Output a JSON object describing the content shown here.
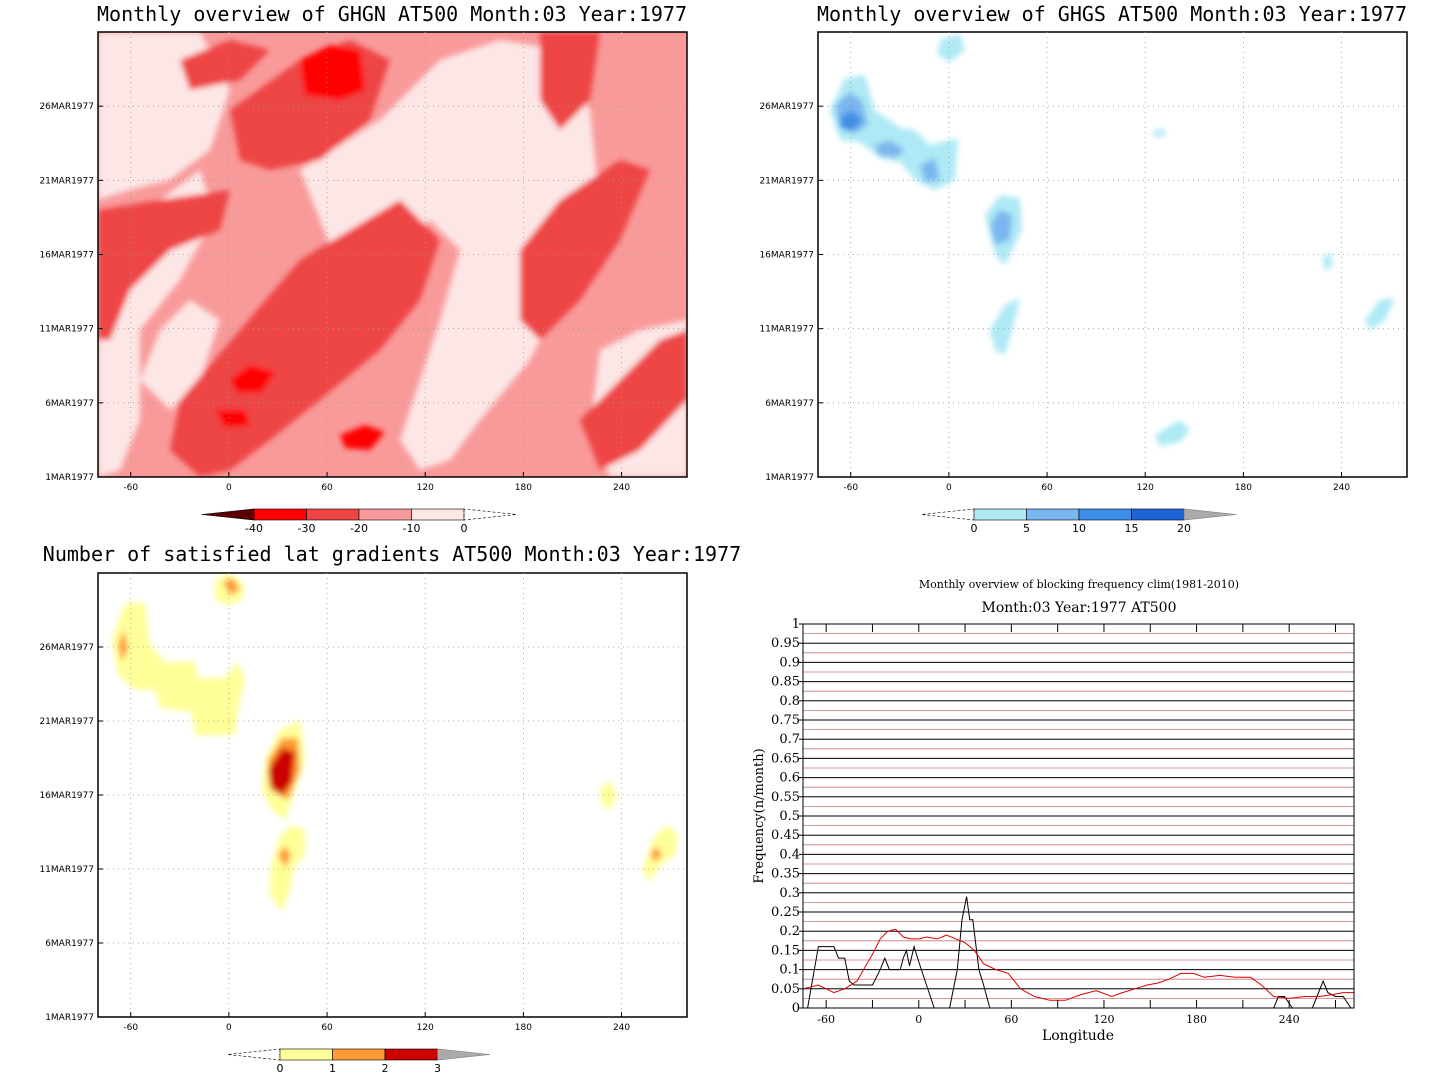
{
  "panels": {
    "ghgn": {
      "title": "Monthly overview of GHGN AT500 Month:03 Year:1977",
      "colorbar": {
        "labels": [
          "-40",
          "-30",
          "-20",
          "-10",
          "0"
        ],
        "colors": [
          "#5a0000",
          "#ff0000",
          "#ee4444",
          "#f99a9a",
          "#fde6e6"
        ]
      }
    },
    "ghgs": {
      "title": "Monthly overview of GHGS AT500 Month:03 Year:1977",
      "colorbar": {
        "labels": [
          "0",
          "5",
          "10",
          "15",
          "20"
        ],
        "colors": [
          "#aee9f5",
          "#7ab6ef",
          "#3d8fe8",
          "#1f64d4"
        ]
      }
    },
    "lat": {
      "title": "Number of satisfied lat gradients AT500 Month:03 Year:1977",
      "colorbar": {
        "labels": [
          "0",
          "1",
          "2",
          "3"
        ],
        "colors": [
          "#ffff99",
          "#ff9933",
          "#cc0000"
        ]
      }
    }
  },
  "map_axes": {
    "xticks": [
      "-60",
      "0",
      "60",
      "120",
      "180",
      "240"
    ],
    "yticks": [
      "1MAR1977",
      "6MAR1977",
      "11MAR1977",
      "16MAR1977",
      "21MAR1977",
      "26MAR1977"
    ]
  },
  "chart_data": {
    "type": "line",
    "title": "Monthly overview of blocking frequency clim(1981-2010)",
    "subtitle": "Month:03 Year:1977  AT500",
    "xlabel": "Longitude",
    "ylabel": "Frequency(n/month)",
    "xlim": [
      -75,
      282
    ],
    "ylim": [
      0,
      1
    ],
    "xticks": [
      "-60",
      "0",
      "60",
      "120",
      "180",
      "240"
    ],
    "yticks": [
      "0",
      "0.05",
      "0.1",
      "0.15",
      "0.2",
      "0.25",
      "0.3",
      "0.35",
      "0.4",
      "0.45",
      "0.5",
      "0.55",
      "0.6",
      "0.65",
      "0.7",
      "0.75",
      "0.8",
      "0.85",
      "0.9",
      "0.95",
      "1"
    ],
    "series": [
      {
        "color": "#000000",
        "points": [
          [
            -72,
            0
          ],
          [
            -65,
            0.16
          ],
          [
            -55,
            0.16
          ],
          [
            -52,
            0.13
          ],
          [
            -48,
            0.13
          ],
          [
            -45,
            0.07
          ],
          [
            -42,
            0.06
          ],
          [
            -38,
            0.06
          ],
          [
            -30,
            0.06
          ],
          [
            -25,
            0.1
          ],
          [
            -22,
            0.13
          ],
          [
            -19,
            0.1
          ],
          [
            -15,
            0.1
          ],
          [
            -12,
            0.1
          ],
          [
            -10,
            0.13
          ],
          [
            -8,
            0.15
          ],
          [
            -6,
            0.11
          ],
          [
            -3,
            0.16
          ],
          [
            0,
            0.12
          ],
          [
            5,
            0.06
          ],
          [
            10,
            0
          ],
          [
            20,
            0
          ],
          [
            25,
            0.1
          ],
          [
            28,
            0.23
          ],
          [
            31,
            0.29
          ],
          [
            33,
            0.23
          ],
          [
            35,
            0.23
          ],
          [
            39,
            0.1
          ],
          [
            42,
            0.06
          ],
          [
            46,
            0
          ],
          [
            230,
            0
          ],
          [
            233,
            0.03
          ],
          [
            237,
            0.03
          ],
          [
            242,
            0
          ],
          [
            255,
            0
          ],
          [
            258,
            0.03
          ],
          [
            262,
            0.07
          ],
          [
            265,
            0.04
          ],
          [
            270,
            0.03
          ],
          [
            275,
            0.03
          ],
          [
            280,
            0
          ]
        ]
      },
      {
        "color": "#dd0000",
        "points": [
          [
            -75,
            0.05
          ],
          [
            -65,
            0.06
          ],
          [
            -55,
            0.04
          ],
          [
            -48,
            0.05
          ],
          [
            -40,
            0.07
          ],
          [
            -30,
            0.14
          ],
          [
            -25,
            0.18
          ],
          [
            -20,
            0.2
          ],
          [
            -15,
            0.205
          ],
          [
            -10,
            0.185
          ],
          [
            -5,
            0.18
          ],
          [
            0,
            0.18
          ],
          [
            5,
            0.185
          ],
          [
            12,
            0.18
          ],
          [
            18,
            0.19
          ],
          [
            24,
            0.18
          ],
          [
            30,
            0.17
          ],
          [
            36,
            0.15
          ],
          [
            42,
            0.115
          ],
          [
            50,
            0.1
          ],
          [
            58,
            0.09
          ],
          [
            66,
            0.05
          ],
          [
            75,
            0.03
          ],
          [
            85,
            0.02
          ],
          [
            95,
            0.02
          ],
          [
            105,
            0.035
          ],
          [
            115,
            0.045
          ],
          [
            125,
            0.03
          ],
          [
            132,
            0.04
          ],
          [
            140,
            0.05
          ],
          [
            148,
            0.06
          ],
          [
            155,
            0.065
          ],
          [
            162,
            0.075
          ],
          [
            170,
            0.09
          ],
          [
            178,
            0.09
          ],
          [
            185,
            0.08
          ],
          [
            195,
            0.085
          ],
          [
            205,
            0.08
          ],
          [
            215,
            0.08
          ],
          [
            222,
            0.06
          ],
          [
            230,
            0.03
          ],
          [
            240,
            0.025
          ],
          [
            250,
            0.03
          ],
          [
            260,
            0.03
          ],
          [
            268,
            0.035
          ],
          [
            275,
            0.04
          ],
          [
            282,
            0.04
          ]
        ]
      }
    ]
  }
}
